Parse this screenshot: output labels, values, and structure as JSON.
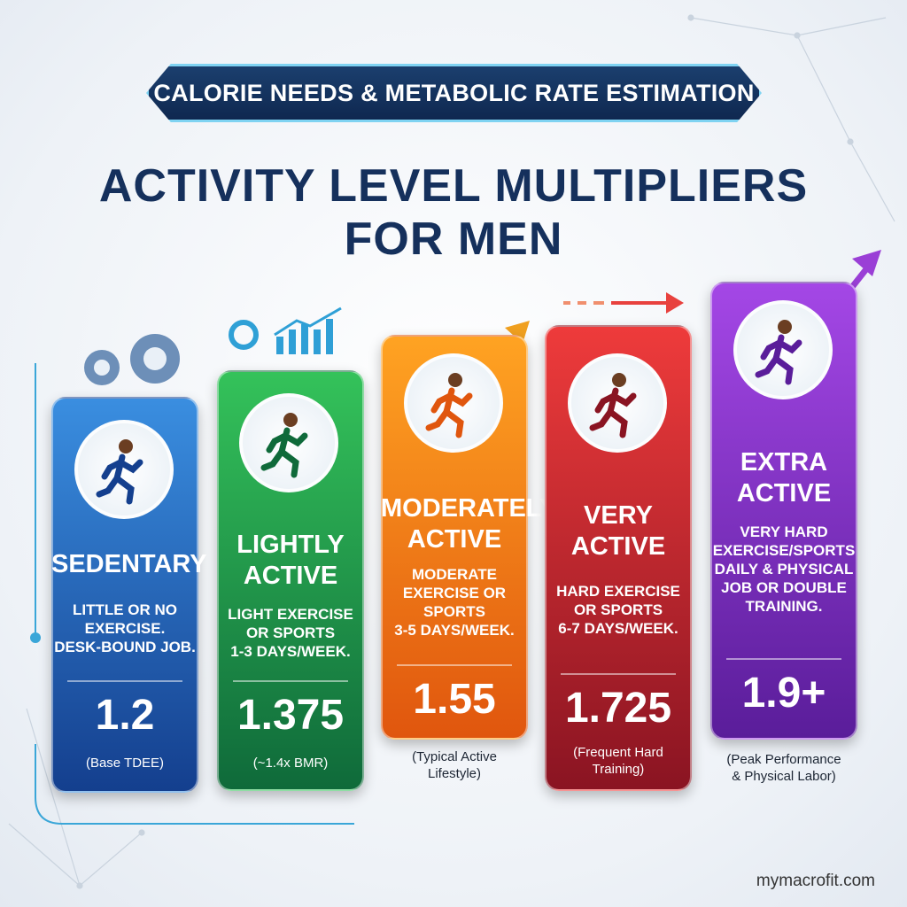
{
  "header": {
    "banner": "CALORIE NEEDS & METABOLIC RATE ESTIMATION",
    "title_lines": [
      "ACTIVITY LEVEL MULTIPLIERS",
      "FOR MEN"
    ]
  },
  "cards": [
    {
      "label": [
        "SEDENTARY"
      ],
      "description": [
        "LITTLE OR NO",
        "EXERCISE.",
        "DESK-BOUND JOB."
      ],
      "multiplier": "1.2",
      "note": [
        "(Base TDEE)"
      ]
    },
    {
      "label": [
        "LIGHTLY",
        "ACTIVE"
      ],
      "description": [
        "LIGHT EXERCISE",
        "OR SPORTS",
        "1-3 DAYS/WEEK."
      ],
      "multiplier": "1.375",
      "note": [
        "(~1.4x BMR)"
      ]
    },
    {
      "label": [
        "MODERATELY",
        "ACTIVE"
      ],
      "description": [
        "MODERATE",
        "EXERCISE OR",
        "SPORTS",
        "3-5 DAYS/WEEK."
      ],
      "multiplier": "1.55",
      "note": [
        "(Typical Active",
        "Lifestyle)"
      ]
    },
    {
      "label": [
        "VERY",
        "ACTIVE"
      ],
      "description": [
        "HARD EXERCISE",
        "OR SPORTS",
        "6-7 DAYS/WEEK."
      ],
      "multiplier": "1.725",
      "note": [
        "(Frequent Hard",
        "Training)"
      ]
    },
    {
      "label": [
        "EXTRA",
        "ACTIVE"
      ],
      "description": [
        "VERY HARD",
        "EXERCISE/SPORTS",
        "DAILY & PHYSICAL",
        "JOB OR DOUBLE",
        "TRAINING."
      ],
      "multiplier": "1.9+",
      "note": [
        "(Peak Performance",
        "& Physical Labor)"
      ]
    }
  ],
  "footer": {
    "site": "mymacrofit.com"
  }
}
